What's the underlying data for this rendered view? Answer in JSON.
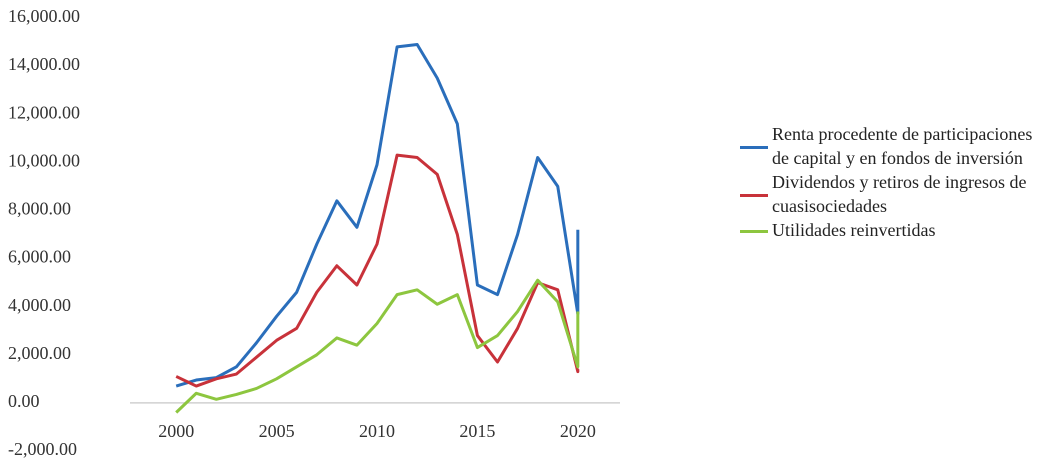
{
  "chart_data": {
    "type": "line",
    "x": [
      2000,
      2001,
      2002,
      2003,
      2004,
      2005,
      2006,
      2007,
      2008,
      2009,
      2010,
      2011,
      2012,
      2013,
      2014,
      2015,
      2016,
      2017,
      2018,
      2019,
      2020,
      2020
    ],
    "series": [
      {
        "name": "Renta procedente de participaciones de capital y en fondos de inversión",
        "color": "#2a6ebb",
        "values": [
          700,
          950,
          1050,
          1500,
          2500,
          3600,
          4600,
          6600,
          8400,
          7300,
          9900,
          14800,
          14900,
          13500,
          11600,
          4900,
          4500,
          7000,
          10200,
          9000,
          3700,
          7200
        ]
      },
      {
        "name": "Dividendos y retiros de ingresos de cuasisociedades",
        "color": "#c8323a",
        "values": [
          1100,
          700,
          1000,
          1200,
          1900,
          2600,
          3100,
          4600,
          5700,
          4900,
          6600,
          10300,
          10200,
          9500,
          7000,
          2800,
          1700,
          3100,
          5000,
          4700,
          1300,
          1400
        ]
      },
      {
        "name": "Utilidades reinvertidas",
        "color": "#8dc63f",
        "values": [
          -400,
          400,
          150,
          350,
          600,
          1000,
          1500,
          2000,
          2700,
          2400,
          3300,
          4500,
          4700,
          4100,
          4500,
          2300,
          2800,
          3800,
          5100,
          4200,
          1500,
          3800
        ]
      }
    ],
    "xlim": [
      1997.7,
      2022.1
    ],
    "xticks": [
      2000,
      2005,
      2010,
      2015,
      2020
    ],
    "ylim": [
      -2000,
      16000
    ],
    "yticks": [
      {
        "value": -2000,
        "label": "-2,000.00"
      },
      {
        "value": 0,
        "label": "0.00"
      },
      {
        "value": 2000,
        "label": "2,000.00"
      },
      {
        "value": 4000,
        "label": "4,000.00"
      },
      {
        "value": 6000,
        "label": "6,000.00"
      },
      {
        "value": 8000,
        "label": "8,000.00"
      },
      {
        "value": 10000,
        "label": "10,000.00"
      },
      {
        "value": 12000,
        "label": "12,000.00"
      },
      {
        "value": 14000,
        "label": "14,000.00"
      },
      {
        "value": 16000,
        "label": "16,000.00"
      }
    ],
    "legend": "right"
  }
}
